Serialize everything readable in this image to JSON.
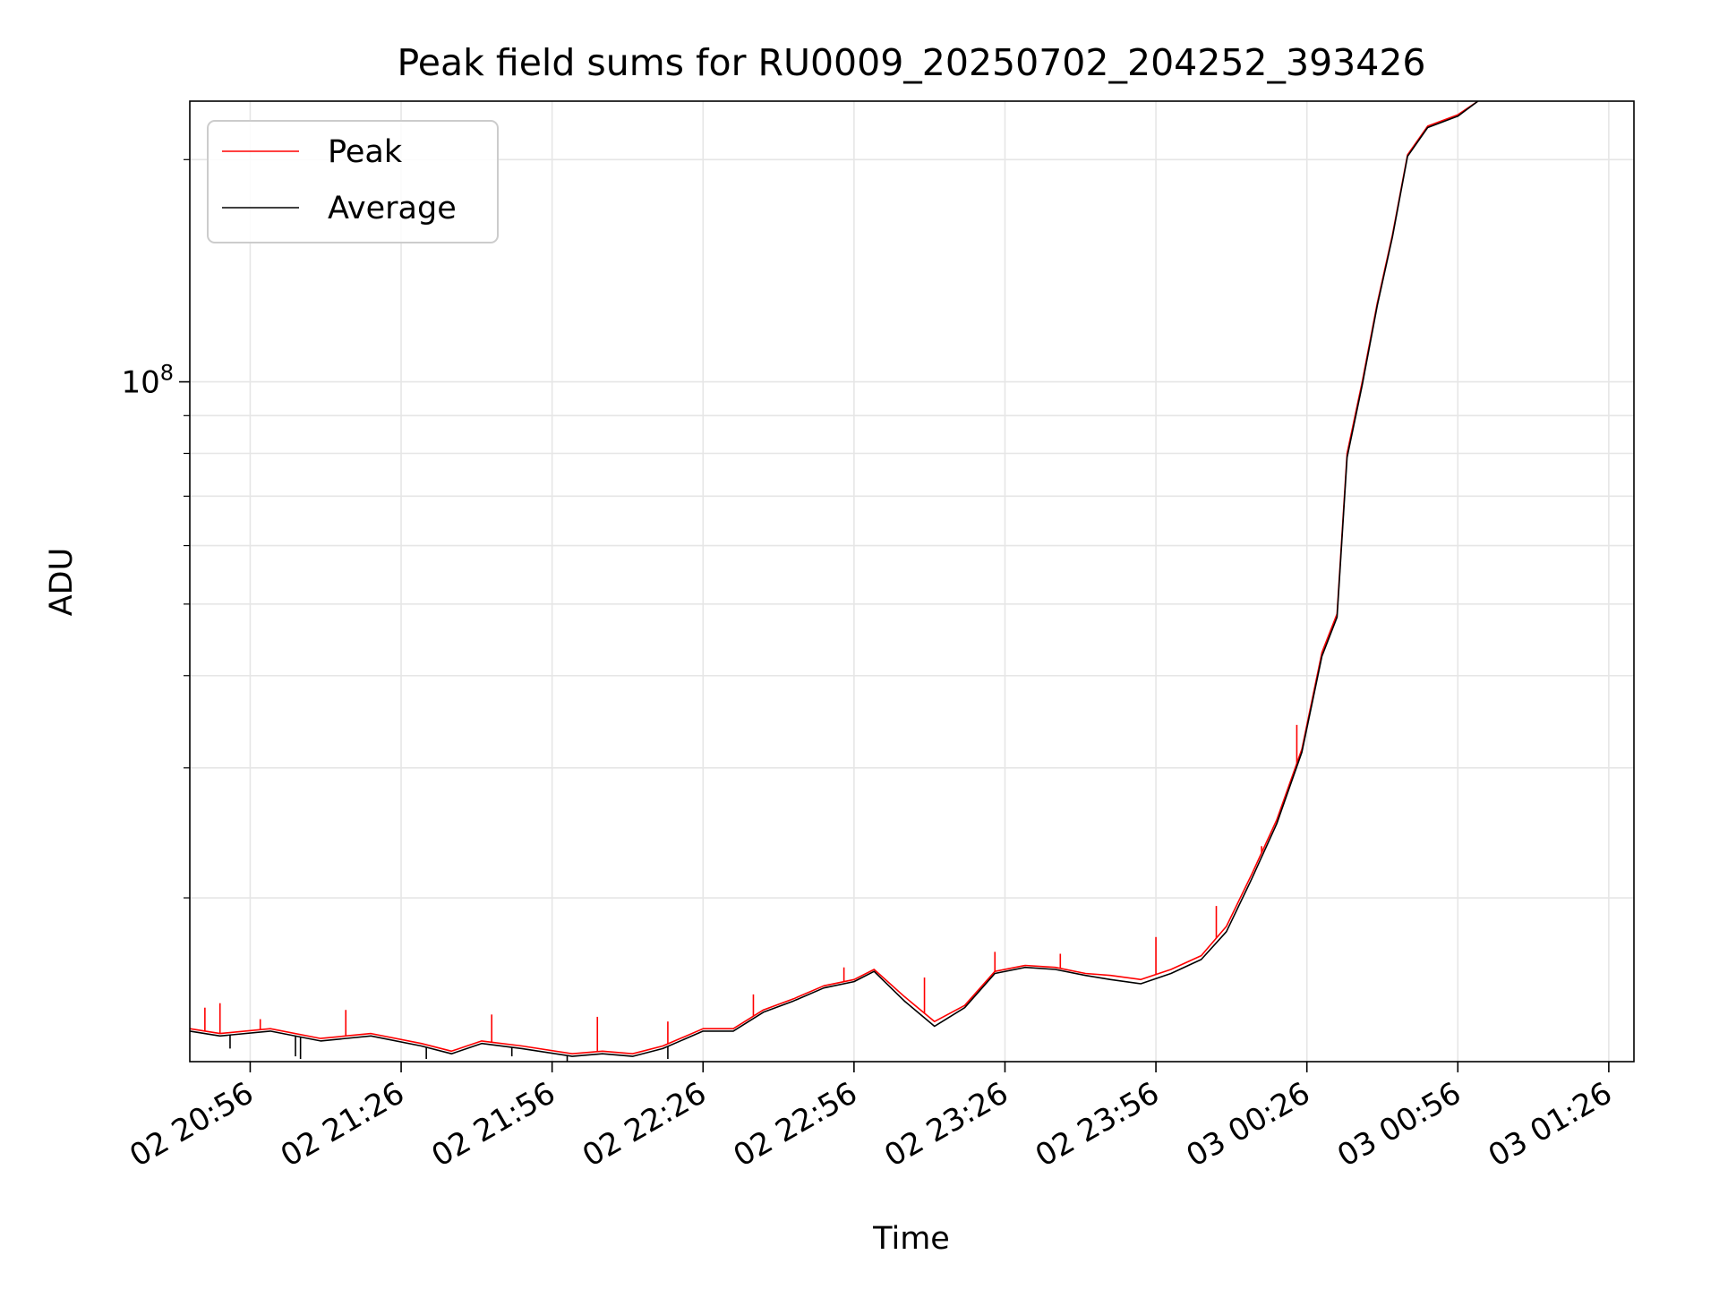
{
  "chart_data": {
    "type": "line",
    "title": "Peak field sums for RU0009_20250702_204252_393426",
    "xlabel": "Time",
    "ylabel": "ADU",
    "y_scale": "log",
    "grid": true,
    "legend_position": "top-left",
    "x_tick_labels": [
      "02 20:56",
      "02 21:26",
      "02 21:56",
      "02 22:26",
      "02 22:56",
      "02 23:26",
      "02 23:56",
      "03 00:26",
      "03 00:56",
      "03 01:26"
    ],
    "y_tick_labels": [
      "10^8"
    ],
    "y_major_tick": 100000000,
    "y_minor_ticks": [
      20000000,
      30000000,
      40000000,
      50000000,
      60000000,
      70000000,
      80000000,
      90000000,
      200000000
    ],
    "xlim": [
      "2025-07-02 20:44",
      "2025-07-03 01:31"
    ],
    "ylim": [
      12000000,
      240000000
    ],
    "series": [
      {
        "name": "Peak",
        "color": "#ff0000",
        "x": [
          "2025-07-02 20:44",
          "2025-07-02 20:50",
          "2025-07-02 21:00",
          "2025-07-02 21:10",
          "2025-07-02 21:20",
          "2025-07-02 21:30",
          "2025-07-02 21:36",
          "2025-07-02 21:42",
          "2025-07-02 21:50",
          "2025-07-02 22:00",
          "2025-07-02 22:06",
          "2025-07-02 22:12",
          "2025-07-02 22:18",
          "2025-07-02 22:26",
          "2025-07-02 22:32",
          "2025-07-02 22:38",
          "2025-07-02 22:44",
          "2025-07-02 22:50",
          "2025-07-02 22:56",
          "2025-07-02 23:00",
          "2025-07-02 23:06",
          "2025-07-02 23:12",
          "2025-07-02 23:18",
          "2025-07-02 23:24",
          "2025-07-02 23:30",
          "2025-07-02 23:36",
          "2025-07-02 23:42",
          "2025-07-02 23:47",
          "2025-07-02 23:53",
          "2025-07-02 23:59",
          "2025-07-03 00:05",
          "2025-07-03 00:10",
          "2025-07-03 00:15",
          "2025-07-03 00:20",
          "2025-07-03 00:25",
          "2025-07-03 00:29",
          "2025-07-03 00:32",
          "2025-07-03 00:34",
          "2025-07-03 00:37",
          "2025-07-03 00:40",
          "2025-07-03 00:43",
          "2025-07-03 00:46",
          "2025-07-03 00:50",
          "2025-07-03 00:56",
          "2025-07-03 01:00"
        ],
        "y": [
          13300000,
          13100000,
          13300000,
          12900000,
          13100000,
          12700000,
          12400000,
          12800000,
          12600000,
          12300000,
          12400000,
          12300000,
          12600000,
          13300000,
          13300000,
          14100000,
          14600000,
          15200000,
          15500000,
          16000000,
          14700000,
          13600000,
          14300000,
          15900000,
          16200000,
          16100000,
          15800000,
          15700000,
          15500000,
          16000000,
          16700000,
          18300000,
          21500000,
          25500000,
          31800000,
          43000000,
          48500000,
          80000000,
          100000000,
          128000000,
          158000000,
          203000000,
          222000000,
          230000000,
          240000000
        ],
        "spikes": [
          {
            "x": "2025-07-02 20:47",
            "y": 14200000
          },
          {
            "x": "2025-07-02 20:50",
            "y": 14400000
          },
          {
            "x": "2025-07-02 20:58",
            "y": 13700000
          },
          {
            "x": "2025-07-02 21:15",
            "y": 14100000
          },
          {
            "x": "2025-07-02 21:44",
            "y": 13900000
          },
          {
            "x": "2025-07-02 22:05",
            "y": 13800000
          },
          {
            "x": "2025-07-02 22:19",
            "y": 13600000
          },
          {
            "x": "2025-07-02 22:36",
            "y": 14800000
          },
          {
            "x": "2025-07-02 22:54",
            "y": 16100000
          },
          {
            "x": "2025-07-02 23:10",
            "y": 15600000
          },
          {
            "x": "2025-07-02 23:24",
            "y": 16900000
          },
          {
            "x": "2025-07-02 23:37",
            "y": 16800000
          },
          {
            "x": "2025-07-02 23:56",
            "y": 17700000
          },
          {
            "x": "2025-07-03 00:08",
            "y": 19500000
          },
          {
            "x": "2025-07-03 00:17",
            "y": 23500000
          },
          {
            "x": "2025-07-03 00:24",
            "y": 34300000
          }
        ]
      },
      {
        "name": "Average",
        "color": "#000000",
        "x": [
          "2025-07-02 20:44",
          "2025-07-02 20:50",
          "2025-07-02 21:00",
          "2025-07-02 21:10",
          "2025-07-02 21:20",
          "2025-07-02 21:30",
          "2025-07-02 21:36",
          "2025-07-02 21:42",
          "2025-07-02 21:50",
          "2025-07-02 22:00",
          "2025-07-02 22:06",
          "2025-07-02 22:12",
          "2025-07-02 22:18",
          "2025-07-02 22:26",
          "2025-07-02 22:32",
          "2025-07-02 22:38",
          "2025-07-02 22:44",
          "2025-07-02 22:50",
          "2025-07-02 22:56",
          "2025-07-02 23:00",
          "2025-07-02 23:06",
          "2025-07-02 23:12",
          "2025-07-02 23:18",
          "2025-07-02 23:24",
          "2025-07-02 23:30",
          "2025-07-02 23:36",
          "2025-07-02 23:42",
          "2025-07-02 23:47",
          "2025-07-02 23:53",
          "2025-07-02 23:59",
          "2025-07-03 00:05",
          "2025-07-03 00:10",
          "2025-07-03 00:15",
          "2025-07-03 00:20",
          "2025-07-03 00:25",
          "2025-07-03 00:29",
          "2025-07-03 00:32",
          "2025-07-03 00:34",
          "2025-07-03 00:37",
          "2025-07-03 00:40",
          "2025-07-03 00:43",
          "2025-07-03 00:46",
          "2025-07-03 00:50",
          "2025-07-03 00:56",
          "2025-07-03 01:00"
        ],
        "y": [
          13200000,
          13000000,
          13200000,
          12800000,
          13000000,
          12600000,
          12300000,
          12700000,
          12500000,
          12200000,
          12300000,
          12200000,
          12500000,
          13200000,
          13200000,
          14000000,
          14500000,
          15100000,
          15400000,
          15900000,
          14500000,
          13400000,
          14200000,
          15800000,
          16100000,
          16000000,
          15700000,
          15500000,
          15300000,
          15800000,
          16500000,
          18000000,
          21200000,
          25200000,
          31500000,
          42500000,
          48000000,
          79000000,
          99000000,
          127000000,
          157000000,
          202000000,
          221000000,
          229000000,
          240000000
        ],
        "dips": [
          {
            "x": "2025-07-02 20:52",
            "y": 12500000
          },
          {
            "x": "2025-07-02 21:05",
            "y": 12200000
          },
          {
            "x": "2025-07-02 21:06",
            "y": 12100000
          },
          {
            "x": "2025-07-02 21:31",
            "y": 12100000
          },
          {
            "x": "2025-07-02 21:48",
            "y": 12200000
          },
          {
            "x": "2025-07-02 21:59",
            "y": 12000000
          },
          {
            "x": "2025-07-02 22:19",
            "y": 12100000
          }
        ]
      }
    ]
  }
}
